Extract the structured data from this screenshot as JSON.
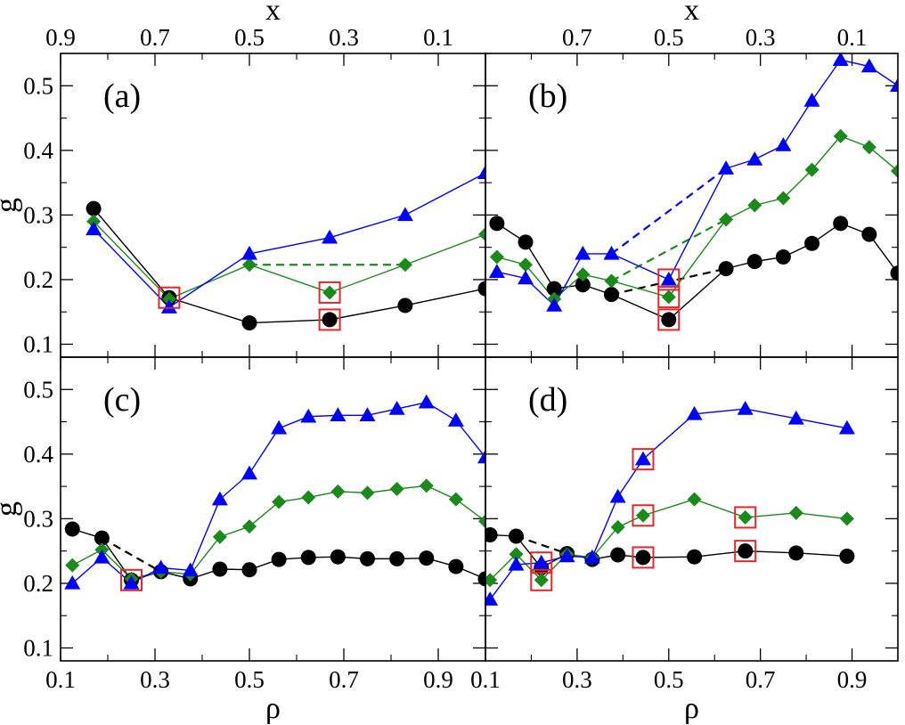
{
  "chart_data": {
    "type": "scatter",
    "layout": "2x2 grid of panels with shared axes",
    "top_axis": {
      "label": "x",
      "ticks": [
        {
          "rho": 0.1,
          "label": "0.9"
        },
        {
          "rho": 0.3,
          "label": "0.7"
        },
        {
          "rho": 0.5,
          "label": "0.5"
        },
        {
          "rho": 0.7,
          "label": "0.3"
        },
        {
          "rho": 0.9,
          "label": "0.1"
        }
      ]
    },
    "bottom_axis": {
      "label": "ρ",
      "ticks": [
        {
          "rho": 0.1,
          "label": "0.1"
        },
        {
          "rho": 0.3,
          "label": "0.3"
        },
        {
          "rho": 0.5,
          "label": "0.5"
        },
        {
          "rho": 0.7,
          "label": "0.7"
        },
        {
          "rho": 0.9,
          "label": "0.9"
        }
      ]
    },
    "y_axis": {
      "label": "g",
      "ylim": [
        0.08,
        0.55
      ],
      "ticks": [
        {
          "value": 0.1,
          "label": "0.1"
        },
        {
          "value": 0.2,
          "label": "0.2"
        },
        {
          "value": 0.3,
          "label": "0.3"
        },
        {
          "value": 0.4,
          "label": "0.4"
        },
        {
          "value": 0.5,
          "label": "0.5"
        }
      ]
    },
    "panels": [
      {
        "label": "(a)",
        "xlim": [
          0.1,
          1.0
        ],
        "series": [
          {
            "name": "circles",
            "marker": "circle",
            "color": "#000000",
            "x": [
              0.17,
              0.33,
              0.5,
              0.67,
              0.83,
              1.0
            ],
            "y": [
              0.31,
              0.172,
              0.133,
              0.138,
              0.16,
              0.186
            ]
          },
          {
            "name": "diamonds",
            "marker": "diamond",
            "color": "#1a8a1a",
            "x": [
              0.17,
              0.33,
              0.5,
              0.67,
              0.83,
              1.0
            ],
            "y": [
              0.29,
              0.17,
              0.223,
              0.18,
              0.223,
              0.27
            ]
          },
          {
            "name": "triangles",
            "marker": "triangle",
            "color": "#0000ff",
            "x": [
              0.17,
              0.33,
              0.5,
              0.67,
              0.83,
              1.0
            ],
            "y": [
              0.278,
              0.157,
              0.24,
              0.265,
              0.3,
              0.365
            ]
          }
        ],
        "dashed": [
          {
            "color": "#1a8a1a",
            "x": [
              0.5,
              0.83
            ],
            "y": [
              0.223,
              0.223
            ]
          }
        ],
        "highlight_boxes": [
          {
            "x": 0.33,
            "y": 0.172
          },
          {
            "x": 0.67,
            "y": 0.18
          },
          {
            "x": 0.67,
            "y": 0.138
          }
        ]
      },
      {
        "label": "(b)",
        "xlim": [
          0.1,
          1.0
        ],
        "series": [
          {
            "name": "circles",
            "marker": "circle",
            "color": "#000000",
            "x": [
              0.125,
              0.1875,
              0.25,
              0.3125,
              0.375,
              0.5,
              0.625,
              0.6875,
              0.75,
              0.8125,
              0.875,
              0.9375,
              1.0
            ],
            "y": [
              0.287,
              0.258,
              0.186,
              0.192,
              0.177,
              0.138,
              0.217,
              0.228,
              0.235,
              0.256,
              0.287,
              0.27,
              0.21
            ]
          },
          {
            "name": "diamonds",
            "marker": "diamond",
            "color": "#1a8a1a",
            "x": [
              0.125,
              0.1875,
              0.25,
              0.3125,
              0.375,
              0.5,
              0.625,
              0.6875,
              0.75,
              0.8125,
              0.875,
              0.9375,
              1.0
            ],
            "y": [
              0.235,
              0.223,
              0.17,
              0.208,
              0.198,
              0.173,
              0.293,
              0.315,
              0.326,
              0.37,
              0.422,
              0.405,
              0.368
            ]
          },
          {
            "name": "triangles",
            "marker": "triangle",
            "color": "#0000ff",
            "x": [
              0.125,
              0.1875,
              0.25,
              0.3125,
              0.375,
              0.5,
              0.625,
              0.6875,
              0.75,
              0.8125,
              0.875,
              0.9375,
              1.0
            ],
            "y": [
              0.212,
              0.202,
              0.16,
              0.24,
              0.24,
              0.2,
              0.372,
              0.386,
              0.408,
              0.477,
              0.54,
              0.53,
              0.5
            ]
          }
        ],
        "dashed": [
          {
            "color": "#000000",
            "x": [
              0.375,
              0.625
            ],
            "y": [
              0.177,
              0.217
            ]
          },
          {
            "color": "#1a8a1a",
            "x": [
              0.375,
              0.625
            ],
            "y": [
              0.198,
              0.293
            ]
          },
          {
            "color": "#0000ff",
            "x": [
              0.375,
              0.625
            ],
            "y": [
              0.24,
              0.372
            ]
          }
        ],
        "highlight_boxes": [
          {
            "x": 0.5,
            "y": 0.2
          },
          {
            "x": 0.5,
            "y": 0.173
          },
          {
            "x": 0.5,
            "y": 0.138
          }
        ]
      },
      {
        "label": "(c)",
        "xlim": [
          0.1,
          1.0
        ],
        "series": [
          {
            "name": "circles",
            "marker": "circle",
            "color": "#000000",
            "x": [
              0.125,
              0.1875,
              0.25,
              0.3125,
              0.375,
              0.4375,
              0.5,
              0.5625,
              0.625,
              0.6875,
              0.75,
              0.8125,
              0.875,
              0.9375,
              1.0
            ],
            "y": [
              0.284,
              0.27,
              0.205,
              0.218,
              0.207,
              0.222,
              0.221,
              0.237,
              0.24,
              0.241,
              0.238,
              0.238,
              0.239,
              0.226,
              0.207
            ]
          },
          {
            "name": "diamonds",
            "marker": "diamond",
            "color": "#1a8a1a",
            "x": [
              0.125,
              0.1875,
              0.25,
              0.3125,
              0.375,
              0.4375,
              0.5,
              0.5625,
              0.625,
              0.6875,
              0.75,
              0.8125,
              0.875,
              0.9375,
              1.0
            ],
            "y": [
              0.228,
              0.252,
              0.207,
              0.218,
              0.214,
              0.272,
              0.288,
              0.326,
              0.333,
              0.342,
              0.34,
              0.346,
              0.351,
              0.33,
              0.296
            ]
          },
          {
            "name": "triangles",
            "marker": "triangle",
            "color": "#0000ff",
            "x": [
              0.125,
              0.1875,
              0.25,
              0.3125,
              0.375,
              0.4375,
              0.5,
              0.5625,
              0.625,
              0.6875,
              0.75,
              0.8125,
              0.875,
              0.9375,
              1.0
            ],
            "y": [
              0.2,
              0.24,
              0.2,
              0.224,
              0.22,
              0.33,
              0.37,
              0.44,
              0.458,
              0.46,
              0.46,
              0.47,
              0.48,
              0.452,
              0.395
            ]
          }
        ],
        "dashed": [
          {
            "color": "#000000",
            "x": [
              0.1875,
              0.3125
            ],
            "y": [
              0.27,
              0.218
            ]
          }
        ],
        "highlight_boxes": [
          {
            "x": 0.25,
            "y": 0.205
          }
        ]
      },
      {
        "label": "(d)",
        "xlim": [
          0.1,
          1.0
        ],
        "series": [
          {
            "name": "circles",
            "marker": "circle",
            "color": "#000000",
            "x": [
              0.11,
              0.167,
              0.222,
              0.278,
              0.333,
              0.389,
              0.444,
              0.556,
              0.667,
              0.778,
              0.889
            ],
            "y": [
              0.275,
              0.273,
              0.224,
              0.246,
              0.237,
              0.244,
              0.24,
              0.241,
              0.25,
              0.247,
              0.242
            ]
          },
          {
            "name": "diamonds",
            "marker": "diamond",
            "color": "#1a8a1a",
            "x": [
              0.11,
              0.167,
              0.222,
              0.278,
              0.333,
              0.389,
              0.444,
              0.556,
              0.667,
              0.778,
              0.889
            ],
            "y": [
              0.205,
              0.245,
              0.205,
              0.245,
              0.24,
              0.287,
              0.305,
              0.33,
              0.302,
              0.309,
              0.3
            ]
          },
          {
            "name": "triangles",
            "marker": "triangle",
            "color": "#0000ff",
            "x": [
              0.11,
              0.167,
              0.222,
              0.278,
              0.333,
              0.389,
              0.444,
              0.556,
              0.667,
              0.778,
              0.889
            ],
            "y": [
              0.175,
              0.229,
              0.232,
              0.242,
              0.24,
              0.334,
              0.392,
              0.462,
              0.47,
              0.455,
              0.44
            ]
          }
        ],
        "dashed": [
          {
            "color": "#000000",
            "x": [
              0.167,
              0.278
            ],
            "y": [
              0.273,
              0.246
            ]
          }
        ],
        "highlight_boxes": [
          {
            "x": 0.222,
            "y": 0.232
          },
          {
            "x": 0.222,
            "y": 0.205
          },
          {
            "x": 0.444,
            "y": 0.392
          },
          {
            "x": 0.444,
            "y": 0.305
          },
          {
            "x": 0.444,
            "y": 0.24
          },
          {
            "x": 0.667,
            "y": 0.302
          },
          {
            "x": 0.667,
            "y": 0.25
          }
        ]
      }
    ],
    "colors": {
      "black_series": "#000000",
      "green_series": "#1a8a1a",
      "blue_series": "#0000ff",
      "highlight_box": "#e8262a"
    }
  }
}
